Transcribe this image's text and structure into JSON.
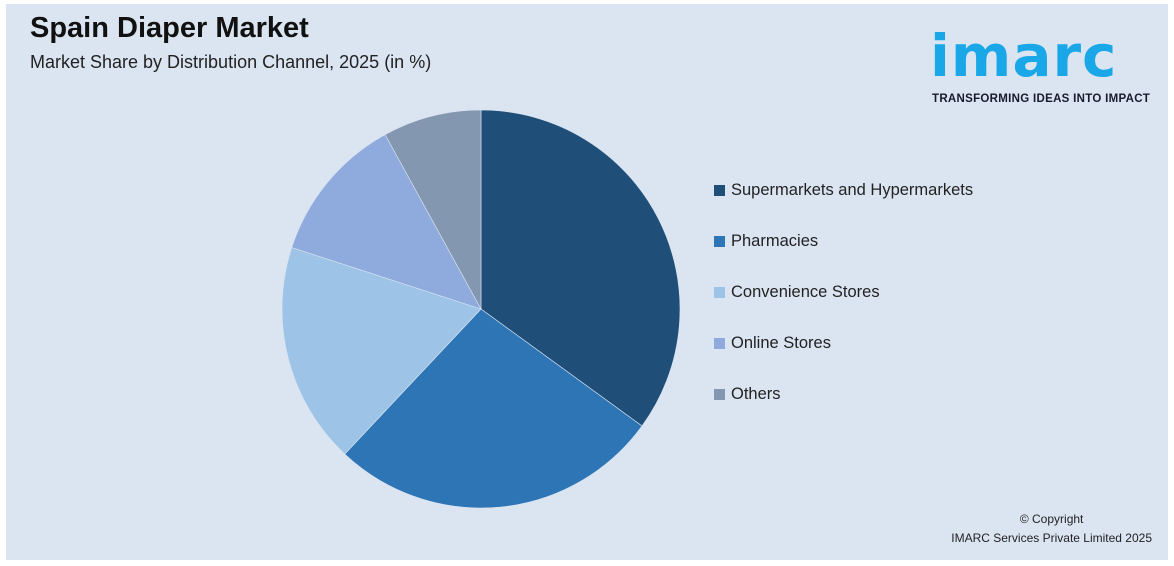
{
  "chart_data": {
    "type": "pie",
    "title": "Spain Diaper Market",
    "subtitle": "Market Share by Distribution Channel, 2025 (in %)",
    "categories": [
      "Supermarkets and Hypermarkets",
      "Pharmacies",
      "Convenience Stores",
      "Online Stores",
      "Others"
    ],
    "values": [
      35,
      27,
      18,
      12,
      8
    ],
    "colors": [
      "#1f4e79",
      "#2e75b6",
      "#9dc3e6",
      "#8faadc",
      "#8497b0"
    ],
    "legend_position": "right"
  },
  "logo": {
    "wordmark": "imarc",
    "tagline": "TRANSFORMING IDEAS INTO IMPACT",
    "color": "#1aa7e8"
  },
  "footer": {
    "copyright_line1": "© Copyright",
    "copyright_line2": "IMARC Services Private Limited 2025"
  }
}
